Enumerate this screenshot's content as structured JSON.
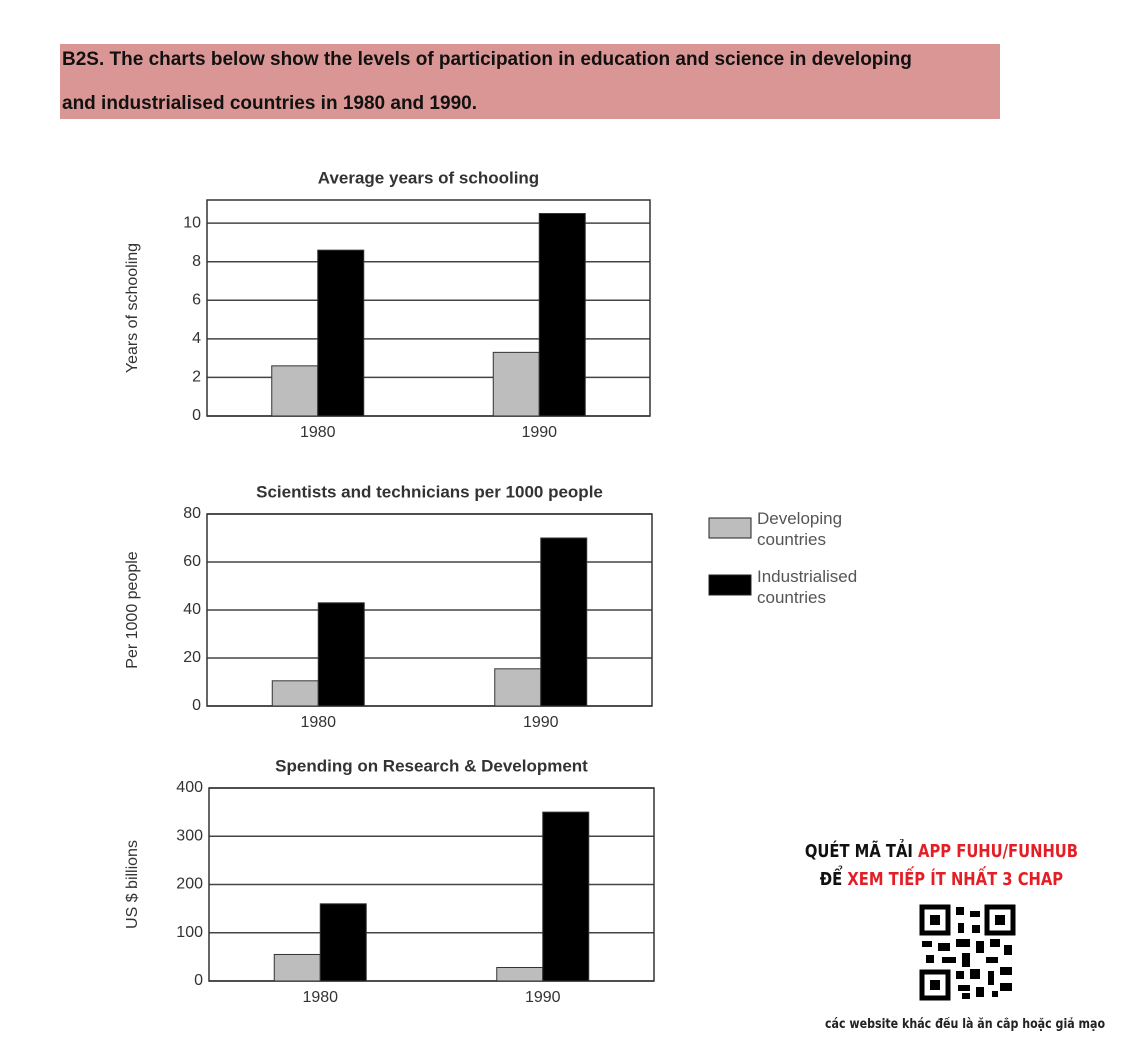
{
  "header": {
    "title": "B2S. The charts below show the levels of participation in education and science in developing and industrialised countries in 1980 and 1990."
  },
  "legend": [
    {
      "name": "Developing countries",
      "color": "#bdbdbd"
    },
    {
      "name": "Industrialised countries",
      "color": "#000000"
    }
  ],
  "chart_data": [
    {
      "type": "bar",
      "title": "Average years of schooling",
      "y_label": "Years of schooling",
      "categories": [
        "1980",
        "1990"
      ],
      "series": [
        {
          "values": [
            2.6,
            3.3
          ]
        },
        {
          "values": [
            8.6,
            10.5
          ]
        }
      ],
      "ylim": [
        0,
        11.2
      ],
      "yticks": [
        0,
        2,
        4,
        6,
        8,
        10
      ],
      "grid": true
    },
    {
      "type": "bar",
      "title": "Scientists and technicians per 1000 people",
      "y_label": "Per 1000 people",
      "categories": [
        "1980",
        "1990"
      ],
      "series": [
        {
          "values": [
            10.5,
            15.5
          ]
        },
        {
          "values": [
            43,
            70
          ]
        }
      ],
      "ylim": [
        0,
        80
      ],
      "yticks": [
        0,
        20,
        40,
        60,
        80
      ],
      "grid": true
    },
    {
      "type": "bar",
      "title": "Spending on Research & Development",
      "y_label": "US $ billions",
      "categories": [
        "1980",
        "1990"
      ],
      "series": [
        {
          "values": [
            55,
            28
          ]
        },
        {
          "values": [
            160,
            350
          ]
        }
      ],
      "ylim": [
        0,
        400
      ],
      "yticks": [
        0,
        100,
        200,
        300,
        400
      ],
      "grid": true
    }
  ],
  "ad": {
    "line1_black": "QUÉT MÃ TẢI",
    "line1_red": "APP FUHU/FUNHUB",
    "line2_black": "ĐỂ",
    "line2_red": "XEM TIẾP ÍT NHẤT 3 CHAP",
    "footer": "các website khác đều là ăn cắp hoặc giả mạo"
  }
}
